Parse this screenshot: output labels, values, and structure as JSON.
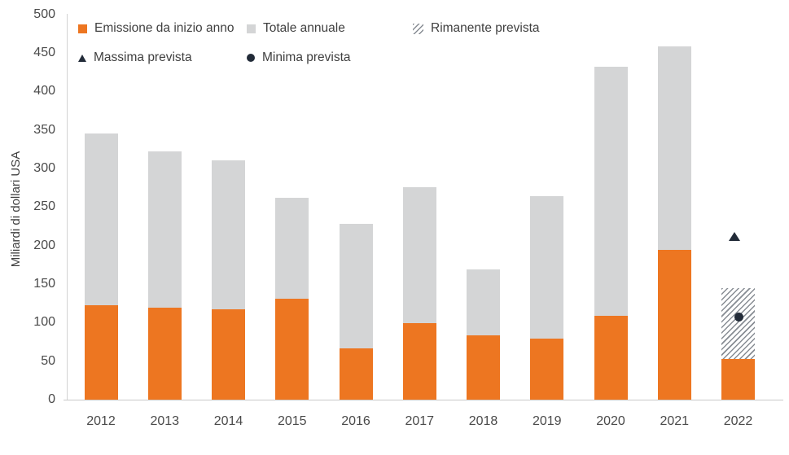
{
  "chart_data": {
    "type": "bar",
    "stacked": true,
    "title": "",
    "xlabel": "",
    "ylabel": "Miliardi di dollari USA",
    "ylim": [
      0,
      500
    ],
    "ytick_step": 50,
    "yticks": [
      0,
      50,
      100,
      150,
      200,
      250,
      300,
      350,
      400,
      450,
      500
    ],
    "grid": false,
    "legend_position": "top-left, two rows, inside plot",
    "categories": [
      "2012",
      "2013",
      "2014",
      "2015",
      "2016",
      "2017",
      "2018",
      "2019",
      "2020",
      "2021",
      "2022"
    ],
    "series": [
      {
        "name": "Emissione da inizio anno",
        "color": "#ED7621",
        "values": [
          123,
          119,
          117,
          131,
          67,
          99,
          83,
          79,
          109,
          194,
          53
        ]
      },
      {
        "name": "Totale annuale",
        "color": "#D4D5D6",
        "note": "values are cumulative annual totals; gray segment stacks from the orange value up to this total; no value for 2022",
        "values": [
          345,
          322,
          311,
          262,
          228,
          276,
          169,
          264,
          432,
          458,
          null
        ]
      }
    ],
    "forecast": {
      "category": "2022",
      "rimanente_prevista": {
        "start": 53,
        "end": 145
      },
      "massima_prevista": 212,
      "minima_prevista": 107
    },
    "legend": [
      {
        "label": "Emissione da inizio anno",
        "marker": "square",
        "color": "#ED7621"
      },
      {
        "label": "Totale annuale",
        "marker": "square",
        "color": "#D4D5D6"
      },
      {
        "label": "Rimanente prevista",
        "marker": "hatch",
        "color": "#878C93"
      },
      {
        "label": "Massima prevista",
        "marker": "triangle",
        "color": "#222B38"
      },
      {
        "label": "Minima prevista",
        "marker": "circle",
        "color": "#222B38"
      }
    ]
  }
}
